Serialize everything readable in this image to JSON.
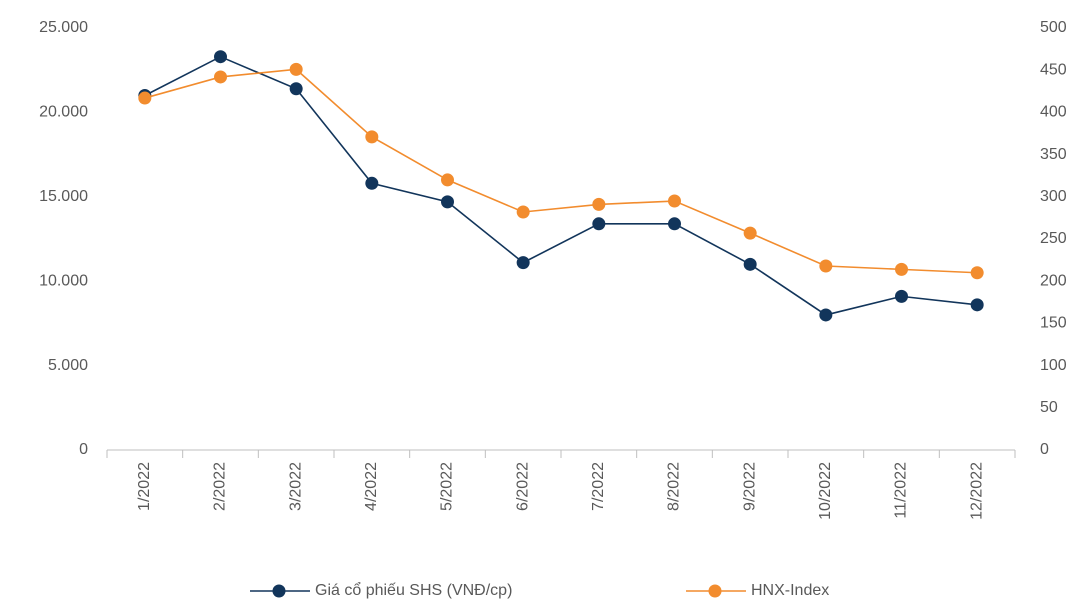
{
  "chart_data": {
    "type": "line",
    "categories": [
      "1/2022",
      "2/2022",
      "3/2022",
      "4/2022",
      "5/2022",
      "6/2022",
      "7/2022",
      "8/2022",
      "9/2022",
      "10/2022",
      "11/2022",
      "12/2022"
    ],
    "series": [
      {
        "name": "Giá cổ phiếu SHS (VNĐ/cp)",
        "color": "#12355b",
        "values": [
          21000,
          23300,
          21400,
          15800,
          14700,
          11100,
          13400,
          13400,
          11000,
          8000,
          9100,
          8600
        ]
      },
      {
        "name": "HNX-Index",
        "color": "#f28c2e",
        "axis": "y2",
        "values": [
          417,
          442,
          451,
          371,
          320,
          282,
          291,
          295,
          257,
          218,
          214,
          210
        ]
      }
    ],
    "ylim": [
      0,
      25000
    ],
    "yticks": [
      0,
      {
        "value": 5000,
        "label": "5.000"
      },
      {
        "value": 10000,
        "label": "10.000"
      },
      {
        "value": 15000,
        "label": "15.000"
      },
      {
        "value": 20000,
        "label": "20.000"
      },
      {
        "value": 25000,
        "label": "25.000"
      }
    ],
    "y2lim": [
      0,
      500
    ],
    "y2ticks": [
      0,
      50,
      100,
      150,
      200,
      250,
      300,
      350,
      400,
      450,
      500
    ],
    "legend": "bottom"
  }
}
